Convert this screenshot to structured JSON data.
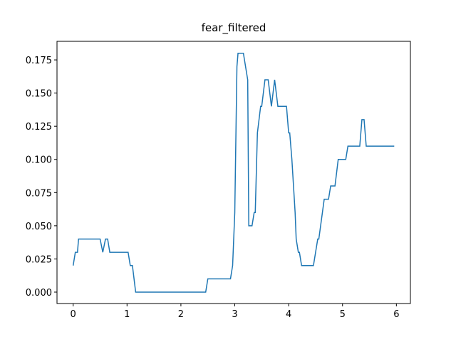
{
  "chart_data": {
    "type": "line",
    "title": "fear_filtered",
    "x": [
      0,
      0.04,
      0.08,
      0.1,
      0.5,
      0.55,
      0.6,
      0.64,
      0.68,
      1.02,
      1.06,
      1.1,
      1.16,
      2.46,
      2.5,
      2.92,
      2.96,
      3.0,
      3.04,
      3.06,
      3.16,
      3.24,
      3.26,
      3.32,
      3.36,
      3.38,
      3.42,
      3.48,
      3.5,
      3.56,
      3.62,
      3.68,
      3.74,
      3.8,
      3.96,
      4.0,
      4.02,
      4.06,
      4.12,
      4.14,
      4.18,
      4.2,
      4.24,
      4.46,
      4.5,
      4.54,
      4.56,
      4.66,
      4.74,
      4.78,
      4.86,
      4.92,
      5.06,
      5.1,
      5.32,
      5.36,
      5.4,
      5.44,
      5.96
    ],
    "series": [
      {
        "color": "#1f77b4",
        "values": [
          0.02,
          0.03,
          0.03,
          0.04,
          0.04,
          0.03,
          0.04,
          0.04,
          0.03,
          0.03,
          0.02,
          0.02,
          0.0,
          0.0,
          0.01,
          0.01,
          0.02,
          0.06,
          0.17,
          0.18,
          0.18,
          0.16,
          0.05,
          0.05,
          0.06,
          0.06,
          0.12,
          0.14,
          0.14,
          0.16,
          0.16,
          0.14,
          0.16,
          0.14,
          0.14,
          0.12,
          0.12,
          0.1,
          0.06,
          0.04,
          0.03,
          0.03,
          0.02,
          0.02,
          0.03,
          0.04,
          0.04,
          0.07,
          0.07,
          0.08,
          0.08,
          0.1,
          0.1,
          0.11,
          0.11,
          0.13,
          0.13,
          0.11,
          0.11
        ]
      }
    ],
    "xlim": [
      -0.3,
      6.26
    ],
    "ylim": [
      -0.0086,
      0.189
    ],
    "xticks": [
      0,
      1,
      2,
      3,
      4,
      5,
      6
    ],
    "yticks": [
      {
        "value": 0,
        "label": "0.000"
      },
      {
        "value": 0.025,
        "label": "0.025"
      },
      {
        "value": 0.05,
        "label": "0.050"
      },
      {
        "value": 0.075,
        "label": "0.075"
      },
      {
        "value": 0.1,
        "label": "0.100"
      },
      {
        "value": 0.125,
        "label": "0.125"
      },
      {
        "value": 0.15,
        "label": "0.150"
      },
      {
        "value": 0.175,
        "label": "0.175"
      }
    ]
  }
}
